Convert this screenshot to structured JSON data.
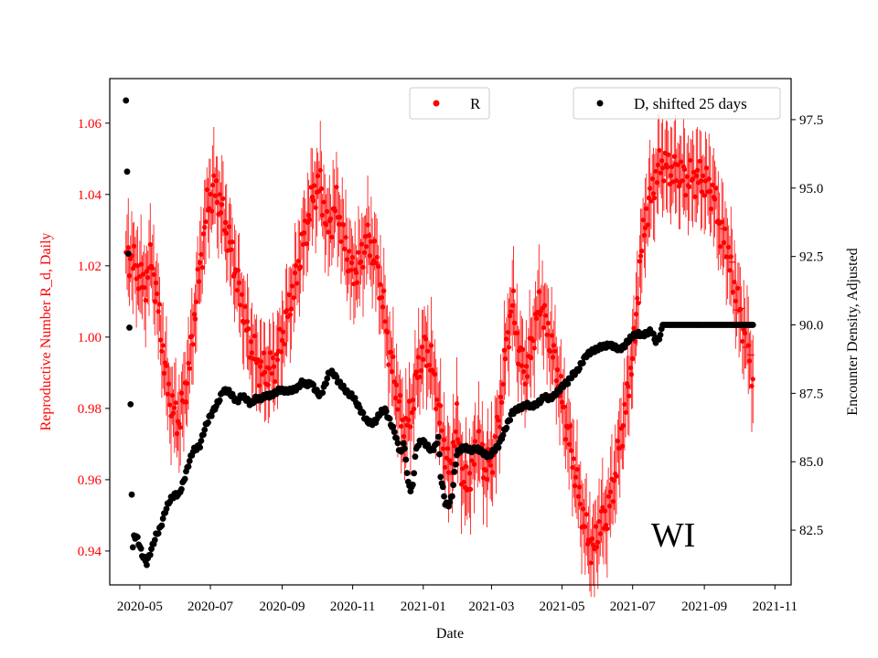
{
  "chart_data": {
    "type": "scatter",
    "title": "",
    "annotation": "WI",
    "xlabel": "Date",
    "ylabel_left": "Reproductive Number R_d, Daily",
    "ylabel_right": "Encounter Density, Adjusted",
    "x_ticks": [
      "2020-05",
      "2020-07",
      "2020-09",
      "2020-11",
      "2021-01",
      "2021-03",
      "2021-05",
      "2021-07",
      "2021-09",
      "2021-11"
    ],
    "x_tick_days": [
      0,
      61,
      123,
      184,
      245,
      304,
      365,
      426,
      488,
      549
    ],
    "xlim_days": [
      -26,
      563
    ],
    "ylim_left": [
      0.9305,
      1.0725
    ],
    "yticks_left": [
      "0.94",
      "0.96",
      "0.98",
      "1.00",
      "1.02",
      "1.04",
      "1.06"
    ],
    "ylim_right": [
      80.5,
      99.0
    ],
    "yticks_right": [
      "82.5",
      "85.0",
      "87.5",
      "90.0",
      "92.5",
      "95.0",
      "97.5"
    ],
    "colors": {
      "R": "#ff0000",
      "D": "#000000",
      "axes": "#000000"
    },
    "series": [
      {
        "name": "R",
        "axis": "left",
        "color": "#ff0000",
        "anchors": [
          [
            -12,
            1.024
          ],
          [
            -4,
            1.02
          ],
          [
            4,
            1.014
          ],
          [
            10,
            1.022
          ],
          [
            16,
            1.008
          ],
          [
            22,
            0.99
          ],
          [
            28,
            0.98
          ],
          [
            34,
            0.976
          ],
          [
            42,
            0.99
          ],
          [
            50,
            1.014
          ],
          [
            58,
            1.036
          ],
          [
            64,
            1.042
          ],
          [
            70,
            1.037
          ],
          [
            78,
            1.026
          ],
          [
            86,
            1.013
          ],
          [
            94,
            1.0
          ],
          [
            102,
            0.992
          ],
          [
            110,
            0.99
          ],
          [
            118,
            0.993
          ],
          [
            126,
            1.004
          ],
          [
            134,
            1.015
          ],
          [
            142,
            1.028
          ],
          [
            150,
            1.04
          ],
          [
            156,
            1.043
          ],
          [
            162,
            1.03
          ],
          [
            170,
            1.037
          ],
          [
            178,
            1.025
          ],
          [
            184,
            1.018
          ],
          [
            190,
            1.02
          ],
          [
            196,
            1.028
          ],
          [
            204,
            1.022
          ],
          [
            210,
            1.01
          ],
          [
            216,
            0.995
          ],
          [
            222,
            0.985
          ],
          [
            228,
            0.973
          ],
          [
            234,
            0.978
          ],
          [
            240,
            0.99
          ],
          [
            246,
            0.997
          ],
          [
            252,
            0.993
          ],
          [
            256,
            0.985
          ],
          [
            262,
            0.971
          ],
          [
            268,
            0.962
          ],
          [
            274,
            0.976
          ],
          [
            280,
            0.958
          ],
          [
            286,
            0.961
          ],
          [
            292,
            0.972
          ],
          [
            298,
            0.963
          ],
          [
            304,
            0.965
          ],
          [
            310,
            0.975
          ],
          [
            316,
            0.995
          ],
          [
            322,
            1.01
          ],
          [
            328,
            0.995
          ],
          [
            334,
            0.99
          ],
          [
            340,
            1.0
          ],
          [
            346,
            1.01
          ],
          [
            354,
            1.0
          ],
          [
            360,
            0.992
          ],
          [
            366,
            0.98
          ],
          [
            372,
            0.97
          ],
          [
            380,
            0.955
          ],
          [
            386,
            0.945
          ],
          [
            392,
            0.94
          ],
          [
            398,
            0.948
          ],
          [
            404,
            0.95
          ],
          [
            410,
            0.96
          ],
          [
            416,
            0.972
          ],
          [
            422,
            0.985
          ],
          [
            428,
            1.0
          ],
          [
            432,
            1.02
          ],
          [
            438,
            1.035
          ],
          [
            444,
            1.042
          ],
          [
            450,
            1.049
          ],
          [
            458,
            1.047
          ],
          [
            466,
            1.046
          ],
          [
            474,
            1.044
          ],
          [
            482,
            1.045
          ],
          [
            490,
            1.043
          ],
          [
            496,
            1.04
          ],
          [
            502,
            1.03
          ],
          [
            508,
            1.025
          ],
          [
            514,
            1.014
          ],
          [
            520,
            1.005
          ],
          [
            526,
            0.997
          ],
          [
            530,
            0.989
          ]
        ],
        "note": "daily estimates with vertical error bars; later points shown with '+' markers"
      },
      {
        "name": "D, shifted 25 days",
        "axis": "right",
        "color": "#000000",
        "anchors": [
          [
            -12,
            98.2
          ],
          [
            -11,
            95.6
          ],
          [
            -10,
            92.6
          ],
          [
            -9,
            89.9
          ],
          [
            -8,
            87.1
          ],
          [
            -7,
            83.8
          ],
          [
            -6,
            81.8
          ],
          [
            -5,
            82.3
          ],
          [
            -2,
            82.2
          ],
          [
            2,
            81.6
          ],
          [
            6,
            81.3
          ],
          [
            10,
            81.8
          ],
          [
            14,
            82.3
          ],
          [
            18,
            82.6
          ],
          [
            22,
            83.2
          ],
          [
            26,
            83.6
          ],
          [
            30,
            83.8
          ],
          [
            34,
            83.8
          ],
          [
            38,
            84.3
          ],
          [
            42,
            84.9
          ],
          [
            46,
            85.4
          ],
          [
            52,
            85.6
          ],
          [
            56,
            86.2
          ],
          [
            60,
            86.6
          ],
          [
            64,
            86.9
          ],
          [
            68,
            87.2
          ],
          [
            72,
            87.6
          ],
          [
            76,
            87.6
          ],
          [
            80,
            87.4
          ],
          [
            84,
            87.2
          ],
          [
            88,
            87.4
          ],
          [
            92,
            87.3
          ],
          [
            96,
            87.1
          ],
          [
            100,
            87.3
          ],
          [
            104,
            87.3
          ],
          [
            108,
            87.4
          ],
          [
            112,
            87.4
          ],
          [
            116,
            87.5
          ],
          [
            120,
            87.6
          ],
          [
            124,
            87.6
          ],
          [
            128,
            87.6
          ],
          [
            132,
            87.6
          ],
          [
            136,
            87.7
          ],
          [
            140,
            87.9
          ],
          [
            144,
            87.8
          ],
          [
            148,
            87.9
          ],
          [
            152,
            87.6
          ],
          [
            156,
            87.4
          ],
          [
            160,
            87.8
          ],
          [
            164,
            88.3
          ],
          [
            168,
            88.2
          ],
          [
            172,
            87.9
          ],
          [
            176,
            87.7
          ],
          [
            180,
            87.5
          ],
          [
            184,
            87.4
          ],
          [
            188,
            87.1
          ],
          [
            192,
            86.8
          ],
          [
            196,
            86.5
          ],
          [
            200,
            86.4
          ],
          [
            204,
            86.5
          ],
          [
            208,
            86.8
          ],
          [
            212,
            86.9
          ],
          [
            216,
            86.5
          ],
          [
            220,
            86.1
          ],
          [
            224,
            85.5
          ],
          [
            226,
            85.3
          ],
          [
            228,
            85.7
          ],
          [
            230,
            85.1
          ],
          [
            232,
            84.2
          ],
          [
            234,
            84.0
          ],
          [
            236,
            84.1
          ],
          [
            238,
            85.2
          ],
          [
            240,
            85.6
          ],
          [
            244,
            85.8
          ],
          [
            248,
            85.6
          ],
          [
            252,
            85.4
          ],
          [
            256,
            85.6
          ],
          [
            258,
            85.9
          ],
          [
            260,
            84.5
          ],
          [
            262,
            84.0
          ],
          [
            264,
            83.5
          ],
          [
            266,
            83.4
          ],
          [
            268,
            83.5
          ],
          [
            270,
            83.8
          ],
          [
            274,
            85.3
          ],
          [
            278,
            85.5
          ],
          [
            282,
            85.5
          ],
          [
            286,
            85.4
          ],
          [
            290,
            85.5
          ],
          [
            294,
            85.4
          ],
          [
            298,
            85.3
          ],
          [
            302,
            85.2
          ],
          [
            306,
            85.4
          ],
          [
            310,
            85.6
          ],
          [
            314,
            86.0
          ],
          [
            318,
            86.4
          ],
          [
            322,
            86.8
          ],
          [
            326,
            86.9
          ],
          [
            330,
            87.0
          ],
          [
            334,
            87.1
          ],
          [
            338,
            87.0
          ],
          [
            342,
            87.1
          ],
          [
            346,
            87.2
          ],
          [
            350,
            87.4
          ],
          [
            354,
            87.3
          ],
          [
            358,
            87.4
          ],
          [
            362,
            87.6
          ],
          [
            366,
            87.8
          ],
          [
            370,
            87.9
          ],
          [
            374,
            88.2
          ],
          [
            378,
            88.3
          ],
          [
            382,
            88.6
          ],
          [
            386,
            88.9
          ],
          [
            390,
            89.0
          ],
          [
            394,
            89.1
          ],
          [
            398,
            89.2
          ],
          [
            402,
            89.2
          ],
          [
            406,
            89.3
          ],
          [
            410,
            89.2
          ],
          [
            414,
            89.1
          ],
          [
            418,
            89.2
          ],
          [
            422,
            89.4
          ],
          [
            426,
            89.6
          ],
          [
            430,
            89.7
          ],
          [
            434,
            89.6
          ],
          [
            438,
            89.7
          ],
          [
            442,
            89.8
          ],
          [
            446,
            89.4
          ],
          [
            450,
            89.6
          ],
          [
            452,
            90.0
          ],
          [
            456,
            90.0
          ],
          [
            460,
            90.0
          ],
          [
            530,
            90.0
          ]
        ]
      }
    ]
  }
}
